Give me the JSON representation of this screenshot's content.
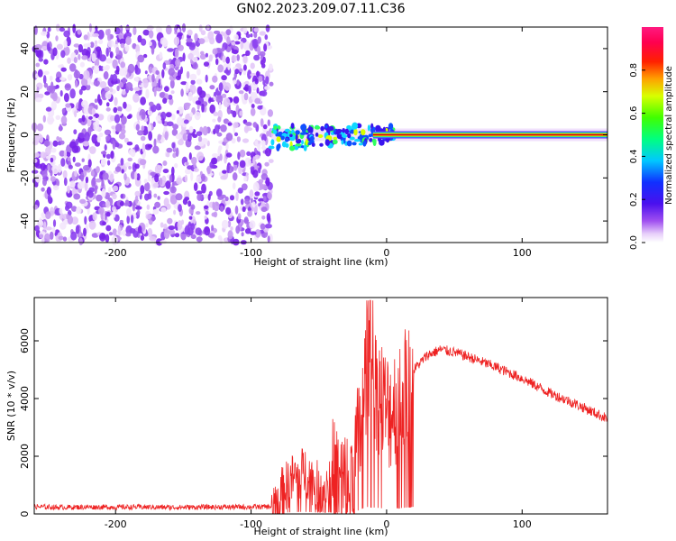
{
  "title": "GN02.2023.209.07.11.C36",
  "chart_data": [
    {
      "type": "heatmap",
      "xlabel": "Height of straight line (km)",
      "ylabel": "Frequency (Hz)",
      "xlim": [
        -260,
        163
      ],
      "ylim": [
        -50,
        50
      ],
      "xticks": [
        -200,
        -100,
        0,
        100
      ],
      "yticks": [
        -40,
        -20,
        0,
        20,
        40
      ],
      "colorbar": {
        "label": "Normalized spectral amplitude",
        "range": [
          0,
          1
        ],
        "ticks": [
          0.0,
          0.2,
          0.4,
          0.6,
          0.8
        ],
        "tick_labels": [
          "0.0",
          "0.2",
          "0.4",
          "0.6",
          "0.8"
        ],
        "colormap": "rainbow (white-violet-blue-cyan-green-yellow-red-magenta)"
      },
      "features": {
        "noise_region_x": [
          -260,
          -85
        ],
        "signal_band_center_hz": 0,
        "signal_start_x": -85,
        "strong_signal_x": [
          -10,
          163
        ]
      }
    },
    {
      "type": "line",
      "xlabel": "Height of straight line (km)",
      "ylabel": "SNR (10 * v/v)",
      "xlim": [
        -260,
        163
      ],
      "ylim": [
        0,
        7500
      ],
      "xticks": [
        -200,
        -100,
        0,
        100
      ],
      "yticks": [
        0,
        2000,
        4000,
        6000
      ],
      "color": "#ee2222",
      "series": [
        {
          "x": [
            -260,
            -240,
            -220,
            -200,
            -180,
            -160,
            -140,
            -120,
            -100,
            -85,
            -70,
            -60,
            -50,
            -40,
            -30,
            -20,
            -15,
            -10,
            -5,
            0,
            10,
            20,
            30,
            40,
            50,
            60,
            80,
            100,
            120,
            140,
            163
          ],
          "y": [
            250,
            230,
            240,
            235,
            240,
            230,
            235,
            240,
            245,
            250,
            1200,
            1500,
            900,
            1200,
            800,
            2600,
            5000,
            4500,
            4200,
            3500,
            4000,
            5000,
            5500,
            5700,
            5600,
            5450,
            5100,
            4700,
            4200,
            3800,
            3300
          ]
        }
      ]
    }
  ],
  "colors": {
    "signal_line": "#ee2222",
    "axis": "#000000",
    "background": "#ffffff"
  }
}
